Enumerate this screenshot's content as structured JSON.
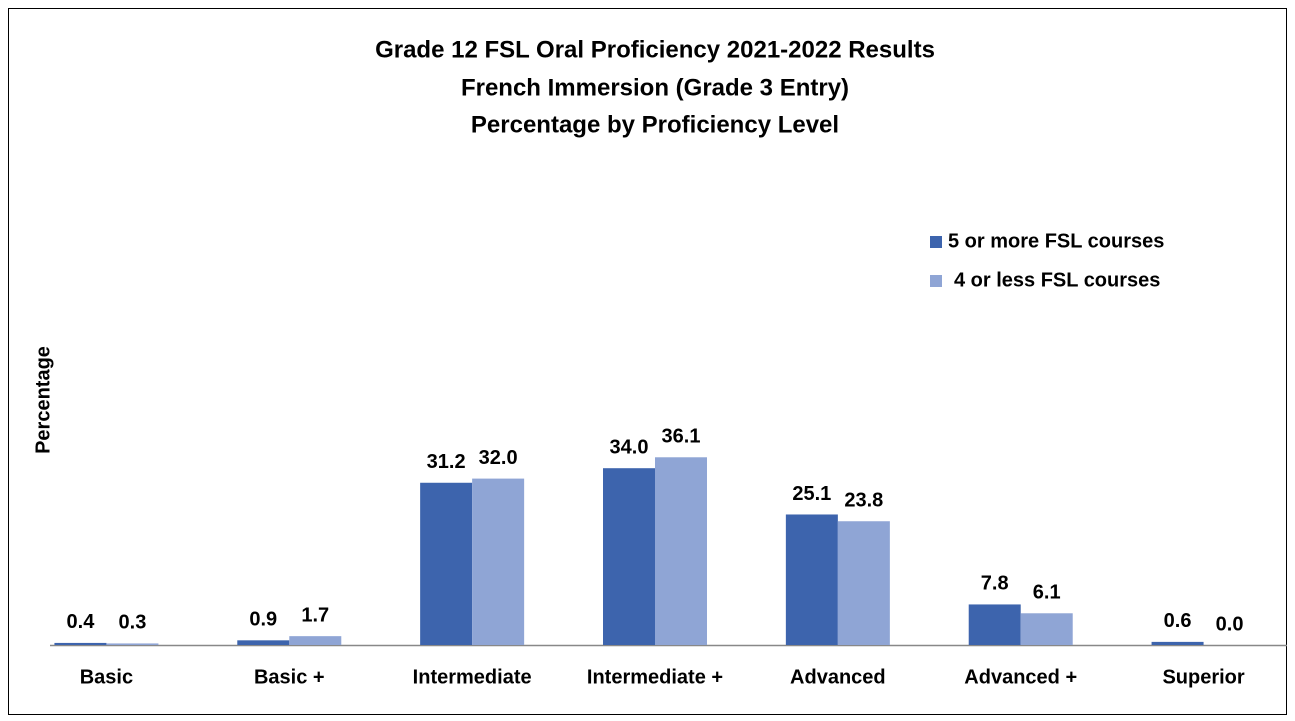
{
  "chart_data": {
    "type": "bar",
    "title": [
      "Grade 12 FSL Oral Proficiency 2021-2022 Results",
      "French Immersion (Grade 3 Entry)",
      "Percentage by Proficiency Level"
    ],
    "ylabel": "Percentage",
    "categories": [
      "Basic",
      "Basic +",
      "Intermediate",
      "Intermediate +",
      "Advanced",
      "Advanced +",
      "Superior"
    ],
    "series": [
      {
        "name": "5 or more FSL courses",
        "color": "#3d64ad",
        "values": [
          0.4,
          0.9,
          31.2,
          34.0,
          25.1,
          7.8,
          0.6
        ],
        "value_labels": [
          "0.4",
          "0.9",
          "31.2",
          "34.0",
          "25.1",
          "7.8",
          "0.6"
        ]
      },
      {
        "name": "4 or less FSL courses",
        "color": "#8fa5d5",
        "values": [
          0.3,
          1.7,
          32.0,
          36.1,
          23.8,
          6.1,
          0.0
        ],
        "value_labels": [
          "0.3",
          "1.7",
          "32.0",
          "36.1",
          "23.8",
          "6.1",
          "0.0"
        ]
      }
    ],
    "ylim": [
      0,
      60
    ],
    "legend": "upper right",
    "grid": false
  }
}
